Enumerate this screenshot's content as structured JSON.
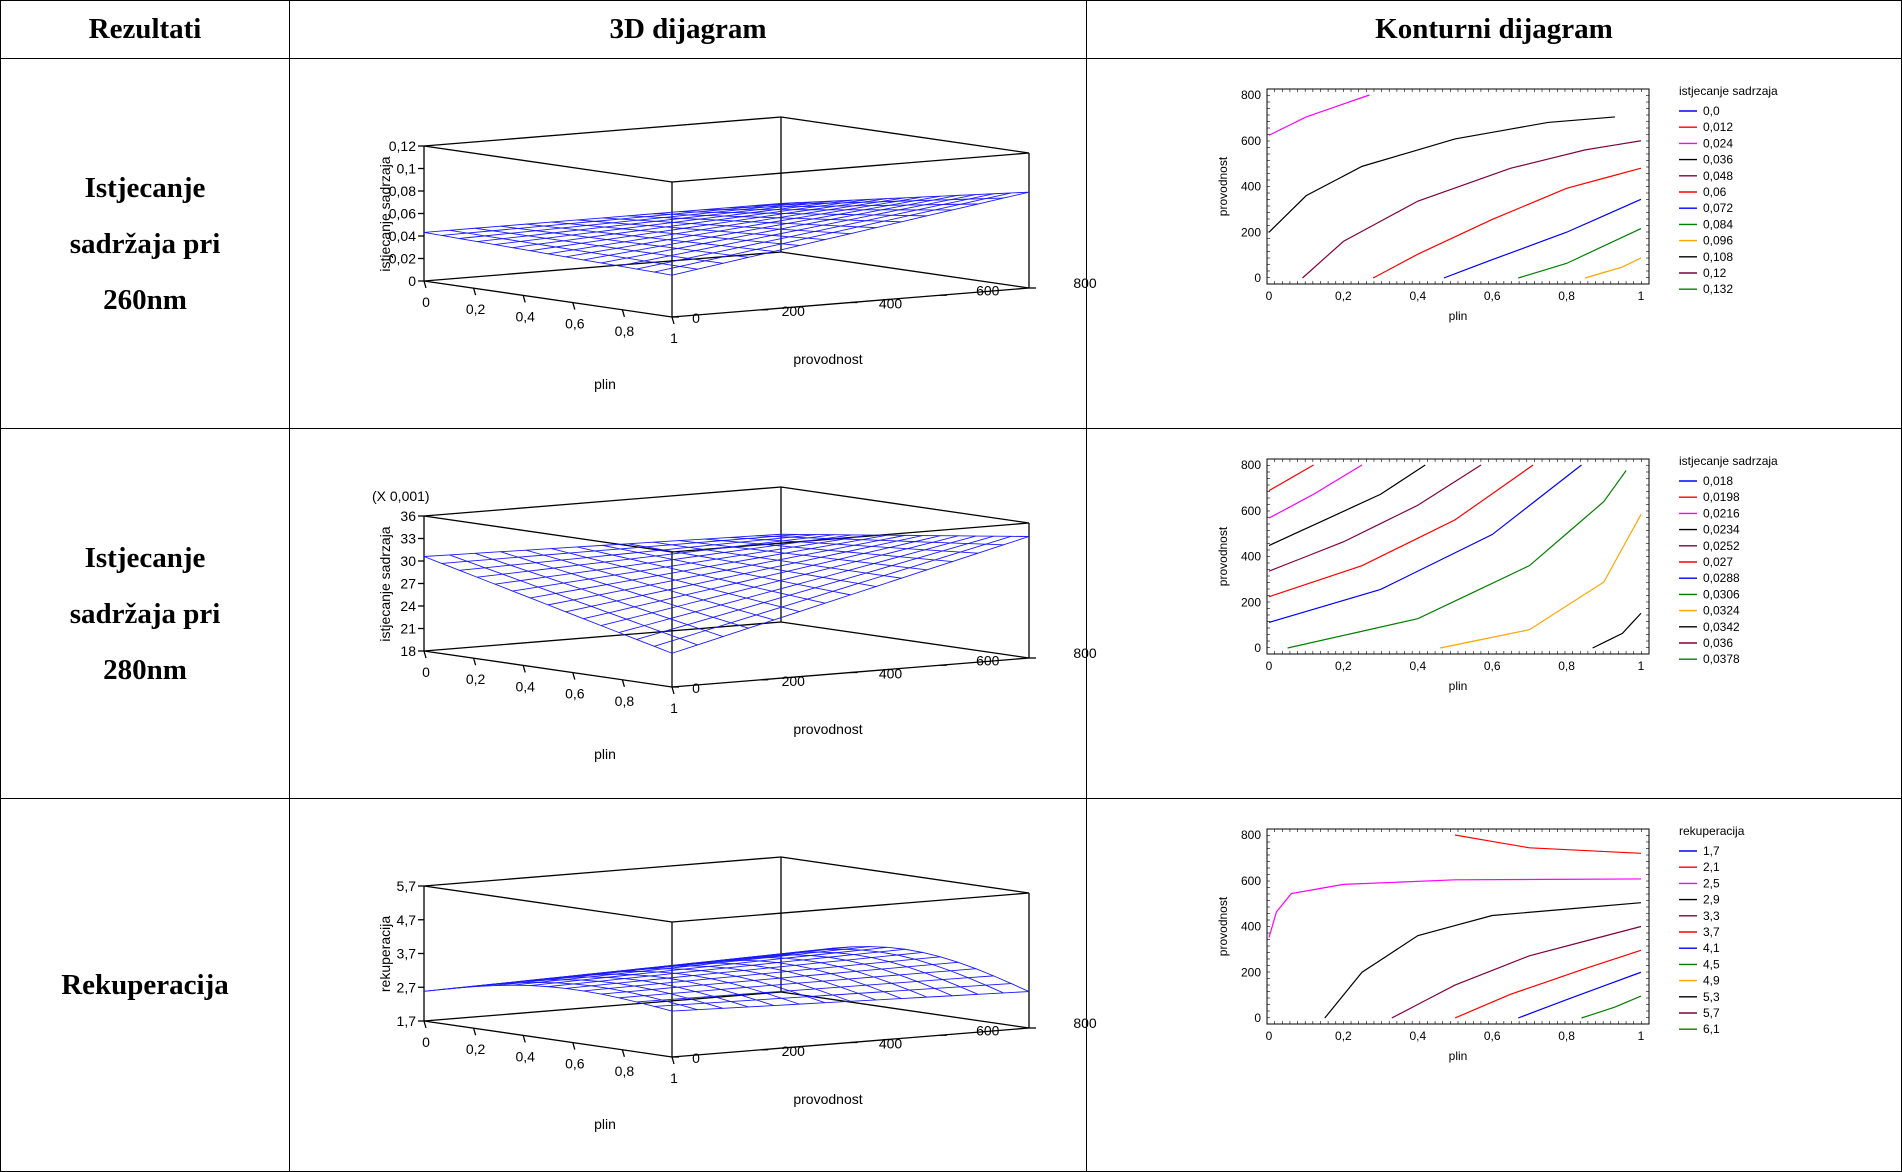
{
  "headers": {
    "col1": "Rezultati",
    "col2": "3D dijagram",
    "col3": "Konturni dijagram"
  },
  "rows": [
    {
      "label_lines": [
        "Istjecanje",
        "sadržaja pri",
        "260nm"
      ],
      "surface": {
        "zlabel": "istjecanje sadrzaja",
        "multiplier": "",
        "zticks": [
          "0",
          "0,02",
          "0,04",
          "0,06",
          "0,08",
          "0,1",
          "0,12"
        ],
        "xlabel": "plin",
        "xticks": [
          "0",
          "0,2",
          "0,4",
          "0,6",
          "0,8",
          "1"
        ],
        "ylabel": "provodnost",
        "yticks": [
          "0",
          "200",
          "400",
          "600",
          "800"
        ]
      },
      "contour": {
        "xlabel": "plin",
        "ylabel": "provodnost",
        "xticks": [
          "0",
          "0,2",
          "0,4",
          "0,6",
          "0,8",
          "1"
        ],
        "yticks": [
          "0",
          "200",
          "400",
          "600",
          "800"
        ],
        "legend_title": "istjecanje sadrzaja",
        "legend": [
          {
            "label": "0,0",
            "color": "#0000ff"
          },
          {
            "label": "0,012",
            "color": "#ff0000"
          },
          {
            "label": "0,024",
            "color": "#ff00ff"
          },
          {
            "label": "0,036",
            "color": "#000000"
          },
          {
            "label": "0,048",
            "color": "#800040"
          },
          {
            "label": "0,06",
            "color": "#ff0000"
          },
          {
            "label": "0,072",
            "color": "#0000ff"
          },
          {
            "label": "0,084",
            "color": "#008000"
          },
          {
            "label": "0,096",
            "color": "#ffa500"
          },
          {
            "label": "0,108",
            "color": "#000000"
          },
          {
            "label": "0,12",
            "color": "#800040"
          },
          {
            "label": "0,132",
            "color": "#008000"
          }
        ]
      }
    },
    {
      "label_lines": [
        "Istjecanje",
        "sadržaja pri",
        "280nm"
      ],
      "surface": {
        "zlabel": "istjecanje sadrzaja",
        "multiplier": "(X 0,001)",
        "zticks": [
          "18",
          "21",
          "24",
          "27",
          "30",
          "33",
          "36"
        ],
        "xlabel": "plin",
        "xticks": [
          "0",
          "0,2",
          "0,4",
          "0,6",
          "0,8",
          "1"
        ],
        "ylabel": "provodnost",
        "yticks": [
          "0",
          "200",
          "400",
          "600",
          "800"
        ]
      },
      "contour": {
        "xlabel": "plin",
        "ylabel": "provodnost",
        "xticks": [
          "0",
          "0,2",
          "0,4",
          "0,6",
          "0,8",
          "1"
        ],
        "yticks": [
          "0",
          "200",
          "400",
          "600",
          "800"
        ],
        "legend_title": "istjecanje sadrzaja",
        "legend": [
          {
            "label": "0,018",
            "color": "#0000ff"
          },
          {
            "label": "0,0198",
            "color": "#ff0000"
          },
          {
            "label": "0,0216",
            "color": "#ff00ff"
          },
          {
            "label": "0,0234",
            "color": "#000000"
          },
          {
            "label": "0,0252",
            "color": "#800040"
          },
          {
            "label": "0,027",
            "color": "#ff0000"
          },
          {
            "label": "0,0288",
            "color": "#0000ff"
          },
          {
            "label": "0,0306",
            "color": "#008000"
          },
          {
            "label": "0,0324",
            "color": "#ffa500"
          },
          {
            "label": "0,0342",
            "color": "#000000"
          },
          {
            "label": "0,036",
            "color": "#800040"
          },
          {
            "label": "0,0378",
            "color": "#008000"
          }
        ]
      }
    },
    {
      "label_lines": [
        "Rekuperacija"
      ],
      "surface": {
        "zlabel": "rekuperacija",
        "multiplier": "",
        "zticks": [
          "1,7",
          "2,7",
          "3,7",
          "4,7",
          "5,7"
        ],
        "xlabel": "plin",
        "xticks": [
          "0",
          "0,2",
          "0,4",
          "0,6",
          "0,8",
          "1"
        ],
        "ylabel": "provodnost",
        "yticks": [
          "0",
          "200",
          "400",
          "600",
          "800"
        ]
      },
      "contour": {
        "xlabel": "plin",
        "ylabel": "provodnost",
        "xticks": [
          "0",
          "0,2",
          "0,4",
          "0,6",
          "0,8",
          "1"
        ],
        "yticks": [
          "0",
          "200",
          "400",
          "600",
          "800"
        ],
        "legend_title": "rekuperacija",
        "legend": [
          {
            "label": "1,7",
            "color": "#0000ff"
          },
          {
            "label": "2,1",
            "color": "#ff0000"
          },
          {
            "label": "2,5",
            "color": "#ff00ff"
          },
          {
            "label": "2,9",
            "color": "#000000"
          },
          {
            "label": "3,3",
            "color": "#800040"
          },
          {
            "label": "3,7",
            "color": "#ff0000"
          },
          {
            "label": "4,1",
            "color": "#0000ff"
          },
          {
            "label": "4,5",
            "color": "#008000"
          },
          {
            "label": "4,9",
            "color": "#ffa500"
          },
          {
            "label": "5,3",
            "color": "#000000"
          },
          {
            "label": "5,7",
            "color": "#800040"
          },
          {
            "label": "6,1",
            "color": "#008000"
          }
        ]
      }
    }
  ]
}
